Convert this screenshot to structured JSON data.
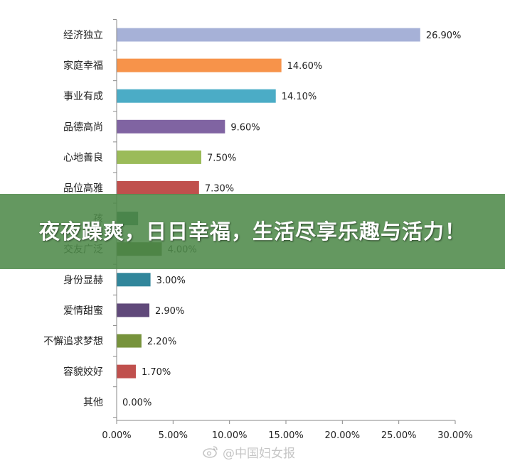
{
  "chart_data": {
    "type": "bar",
    "orientation": "horizontal",
    "categories": [
      "经济独立",
      "家庭幸福",
      "事业有成",
      "品德高尚",
      "心地善良",
      "品位高雅",
      "孩",
      "交友广泛",
      "身份显赫",
      "爱情甜蜜",
      "不懈追求梦想",
      "容貌姣好",
      "其他"
    ],
    "values": [
      26.9,
      14.6,
      14.1,
      9.6,
      7.5,
      7.3,
      null,
      4.0,
      3.0,
      2.9,
      2.2,
      1.7,
      0.0
    ],
    "value_labels": [
      "26.90%",
      "14.60%",
      "14.10%",
      "9.60%",
      "7.50%",
      "7.30%",
      "",
      "4.00%",
      "3.00%",
      "2.90%",
      "2.20%",
      "1.70%",
      "0.00%"
    ],
    "colors": [
      "#A6B1D7",
      "#F7934A",
      "#4BACC6",
      "#8064A2",
      "#9BBB59",
      "#C0504D",
      "#2B6050",
      "#4F6228",
      "#31869B",
      "#60497A",
      "#77933C",
      "#C0504D",
      "#4472C4"
    ],
    "x_ticks": [
      "0.00%",
      "5.00%",
      "10.00%",
      "15.00%",
      "20.00%",
      "25.00%",
      "30.00%"
    ],
    "xlim": [
      0,
      30
    ],
    "grid": false,
    "legend": "none",
    "title": "",
    "xlabel": "",
    "ylabel": ""
  },
  "banner": {
    "text": "夜夜躁爽，日日幸福，生活尽享乐趣与活力！"
  },
  "watermark": {
    "text": "@中国妇女报",
    "icon": "weibo-icon"
  }
}
